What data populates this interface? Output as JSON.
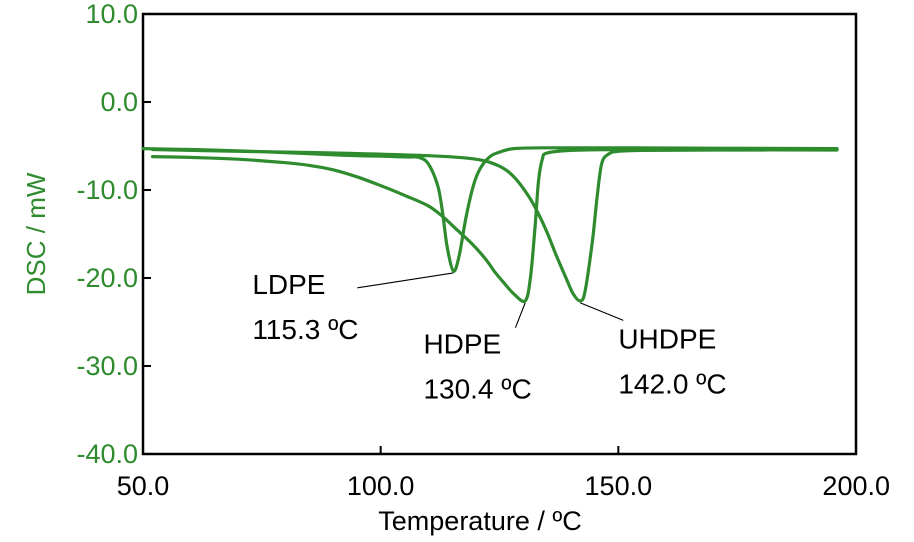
{
  "chart_data": {
    "type": "line",
    "xlabel": "Temperature / ºC",
    "ylabel": "DSC / mW",
    "xlim": [
      50,
      200
    ],
    "ylim": [
      -40,
      10
    ],
    "x_ticks": [
      "50.0",
      "100.0",
      "150.0",
      "200.0"
    ],
    "y_ticks": [
      "10.0",
      "0.0",
      "-10.0",
      "-20.0",
      "-30.0",
      "-40.0"
    ],
    "line_color": "#2e8b2e",
    "series": [
      {
        "name": "LDPE",
        "x": [
          50,
          60,
          70,
          80,
          90,
          95,
          100,
          103,
          106,
          108,
          110,
          112,
          113,
          114,
          115.3,
          116.5,
          118,
          119.5,
          121,
          123,
          125,
          128,
          135,
          150,
          170,
          196
        ],
        "y": [
          -5.3,
          -5.4,
          -5.55,
          -5.75,
          -6.0,
          -6.1,
          -6.15,
          -6.2,
          -6.25,
          -6.3,
          -7.0,
          -9.5,
          -12.5,
          -16.5,
          -19.2,
          -17.5,
          -13.0,
          -9.5,
          -7.5,
          -6.2,
          -5.7,
          -5.3,
          -5.2,
          -5.2,
          -5.25,
          -5.3
        ]
      },
      {
        "name": "HDPE",
        "x": [
          52,
          60,
          70,
          80,
          85,
          90,
          95,
          100,
          105,
          110,
          113,
          116,
          119,
          122,
          124,
          126,
          128,
          130.4,
          131.5,
          132.5,
          133.2,
          134,
          135,
          140,
          150,
          170,
          196
        ],
        "y": [
          -6.2,
          -6.3,
          -6.5,
          -6.9,
          -7.2,
          -7.7,
          -8.5,
          -9.5,
          -10.6,
          -11.8,
          -13.0,
          -14.5,
          -16.0,
          -17.8,
          -19.3,
          -20.6,
          -21.8,
          -22.6,
          -20.0,
          -14.0,
          -9.0,
          -6.5,
          -5.8,
          -5.5,
          -5.4,
          -5.4,
          -5.4
        ]
      },
      {
        "name": "UHDPE",
        "x": [
          52,
          70,
          90,
          110,
          120,
          125,
          128,
          131,
          133,
          135,
          137,
          139,
          140.5,
          142.0,
          143,
          144.5,
          145.5,
          146.5,
          148,
          150,
          155,
          170,
          196
        ],
        "y": [
          -5.4,
          -5.6,
          -5.8,
          -6.1,
          -6.5,
          -7.3,
          -8.5,
          -10.6,
          -12.5,
          -14.8,
          -17.5,
          -20.0,
          -21.8,
          -22.6,
          -21.5,
          -16.0,
          -11.0,
          -7.0,
          -5.9,
          -5.6,
          -5.5,
          -5.45,
          -5.45
        ]
      }
    ],
    "annotations": [
      {
        "name": "LDPE",
        "label": "LDPE",
        "value": "115.3 ºC",
        "peak": [
          115.3,
          -19.2
        ],
        "text_at": [
          73,
          -21.8
        ]
      },
      {
        "name": "HDPE",
        "label": "HDPE",
        "value": "130.4 ºC",
        "peak": [
          130.4,
          -22.6
        ],
        "text_at": [
          109,
          -28.6
        ]
      },
      {
        "name": "UHDPE",
        "label": "UHDPE",
        "value": "142.0 ºC",
        "peak": [
          142.0,
          -22.6
        ],
        "text_at": [
          150,
          -28.0
        ]
      }
    ]
  }
}
